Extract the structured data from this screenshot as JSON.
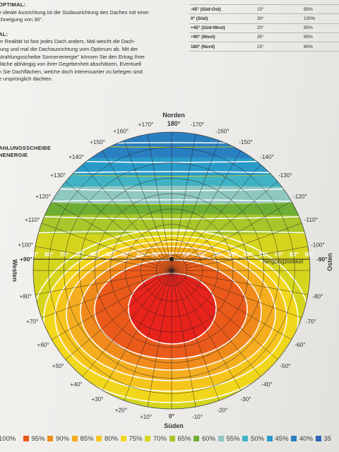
{
  "intro": {
    "line1": "e ideale Ausrichtung ist die Südausrichtung des Daches mit einer",
    "line2": "chneigung von 30°.",
    "heading2": "AL:",
    "para": [
      "er Realität ist fast jedes Dach anders. Mal weicht die Dach-",
      "tung und mal die Dachausrichtung vom Optimum ab. Mit der",
      "strahlungsscheibe Sonnenenergie\" können Sie den Ertrag Ihrer",
      "fläche abhängig von ihrer Gegebenheit abschätzen. Eventuell",
      "n Sie Dachflächen, welche doch interessanter zu belegen sind",
      "e ursprünglich dachten."
    ],
    "heading1": "OPTIMAL:"
  },
  "table": {
    "rows": [
      {
        "dir": "-45° (Süd-Ost)",
        "deg": "15°",
        "pct": "95%"
      },
      {
        "dir": "0° (Süd)",
        "deg": "30°",
        "pct": "100%"
      },
      {
        "dir": "+45° (Süd-West)",
        "deg": "20°",
        "pct": "95%"
      },
      {
        "dir": "+90° (West)",
        "deg": "35°",
        "pct": "85%"
      },
      {
        "dir": "180° (Nord)",
        "deg": "15°",
        "pct": "80%"
      }
    ]
  },
  "section_title": [
    "AHLUNGSSCHEIBE",
    "NENERGIE"
  ],
  "diagram": {
    "north": "Norden",
    "north_deg": "180°",
    "south": "Süden",
    "west": "Westen",
    "east": "Osten",
    "tilt_label": "Neigungswinkel",
    "west_mark": "+90°",
    "east_mark": "-90°",
    "center_mark": "0°",
    "left_ticks": [
      "+170°",
      "+160°",
      "+150°",
      "+140°",
      "+130°",
      "+120°",
      "+110°",
      "+100°",
      "+80°",
      "+70°",
      "+60°",
      "+50°",
      "+40°",
      "+30°",
      "+20°",
      "+10°"
    ],
    "right_ticks": [
      "-170°",
      "-160°",
      "-150°",
      "-140°",
      "-130°",
      "-120°",
      "-110°",
      "-100°",
      "-80°",
      "-70°",
      "-60°",
      "-50°",
      "-40°",
      "-30°",
      "-20°",
      "-10°"
    ],
    "tilt_scale": [
      "90°",
      "80°",
      "70°",
      "60°",
      "50°",
      "40°",
      "30°",
      "20°",
      "10°",
      "0°",
      "10°",
      "20°",
      "30°",
      "40°",
      "50°",
      "60°",
      "70°",
      "80°",
      "90°"
    ]
  },
  "legend": [
    {
      "label": "100%",
      "color": "#e8231c"
    },
    {
      "label": "95%",
      "color": "#ea5a1a"
    },
    {
      "label": "90%",
      "color": "#f08a1c"
    },
    {
      "label": "85%",
      "color": "#f4ae1f"
    },
    {
      "label": "80%",
      "color": "#f6c51d"
    },
    {
      "label": "75%",
      "color": "#f1d71b"
    },
    {
      "label": "70%",
      "color": "#d6d51e"
    },
    {
      "label": "65%",
      "color": "#a9c62a"
    },
    {
      "label": "60%",
      "color": "#6fae35"
    },
    {
      "label": "55%",
      "color": "#8fc7c1"
    },
    {
      "label": "50%",
      "color": "#3fb2c4"
    },
    {
      "label": "45%",
      "color": "#2a9bc9"
    },
    {
      "label": "40%",
      "color": "#2a7fc1"
    },
    {
      "label": "35",
      "color": "#2a66b1"
    }
  ]
}
